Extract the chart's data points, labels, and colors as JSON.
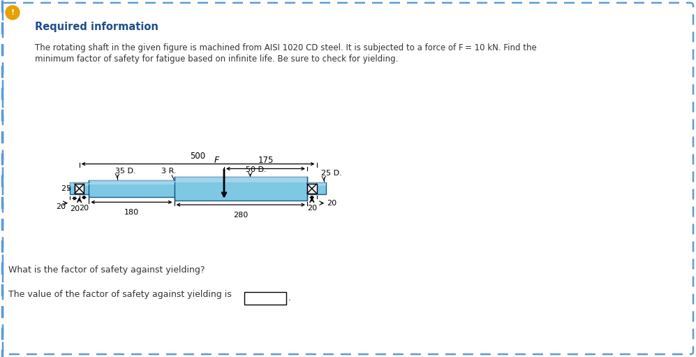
{
  "bg_color": "#ffffff",
  "outer_border_color": "#5b9bd5",
  "title_text": "Required information",
  "title_color": "#1f4e8c",
  "body_line1": "The rotating shaft in the given figure is machined from AISI 1020 CD steel. It is subjected to a force of F = 10 kN. Find the",
  "body_line2": "minimum factor of safety for fatigue based on infinite life. Be sure to check for yielding.",
  "question_text": "What is the factor of safety against yielding?",
  "answer_text": "The value of the factor of safety against yielding is",
  "alert_color": "#e8a000",
  "shaft_fill": "#7ec8e3",
  "shaft_highlight": "#b8dff0",
  "shaft_edge": "#1a5a8a",
  "dim_color": "#000000",
  "text_color": "#333333",
  "border_left_color": "#5b9bd5"
}
